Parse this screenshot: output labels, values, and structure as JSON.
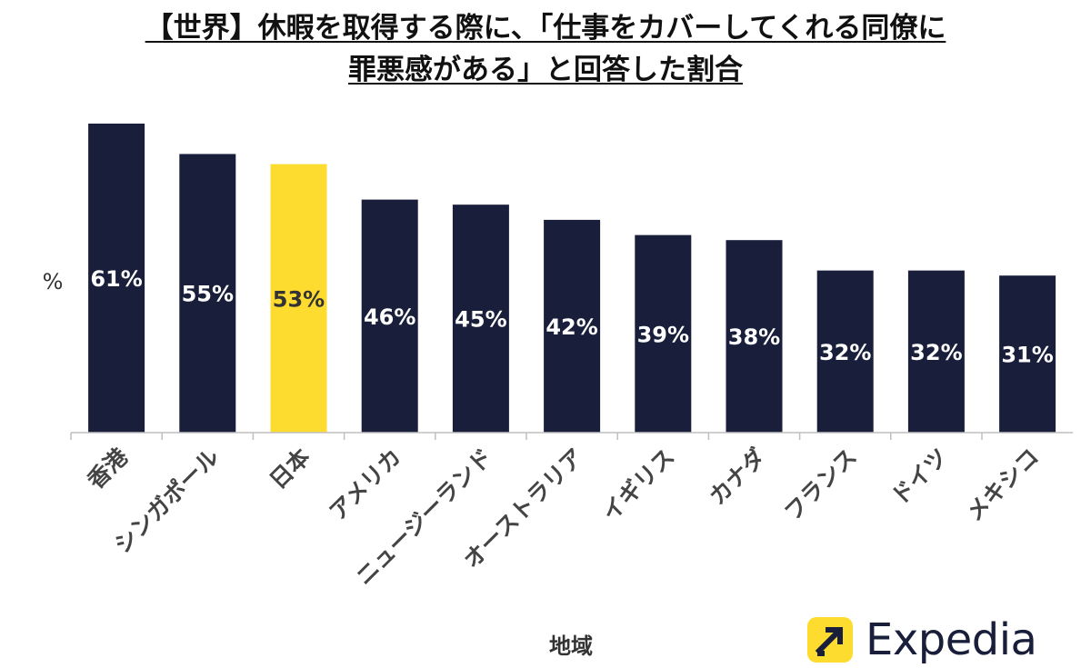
{
  "title": {
    "line1": "【世界】休暇を取得する際に、「仕事をカバーしてくれる同僚に",
    "line2": "罪悪感がある」と回答した割合"
  },
  "brand": {
    "name": "Expedia",
    "icon": "expedia-arrow-icon"
  },
  "colors": {
    "bar": "#191E3B",
    "highlight": "#FEDB2F",
    "label_on_dark": "#ffffff",
    "label_on_highlight": "#333333"
  },
  "chart_data": {
    "type": "bar",
    "title": "【世界】休暇を取得する際に、「仕事をカバーしてくれる同僚に罪悪感がある」と回答した割合",
    "xlabel": "地域",
    "ylabel": "%",
    "ylim": [
      0,
      61
    ],
    "grid": false,
    "highlight_category": "日本",
    "categories": [
      "香港",
      "シンガポール",
      "日本",
      "アメリカ",
      "ニュージーランド",
      "オーストラリア",
      "イギリス",
      "カナダ",
      "フランス",
      "ドイツ",
      "メキシコ"
    ],
    "values": [
      61,
      55,
      53,
      46,
      45,
      42,
      39,
      38,
      32,
      32,
      31
    ],
    "value_labels": [
      "61%",
      "55%",
      "53%",
      "46%",
      "45%",
      "42%",
      "39%",
      "38%",
      "32%",
      "32%",
      "31%"
    ]
  }
}
